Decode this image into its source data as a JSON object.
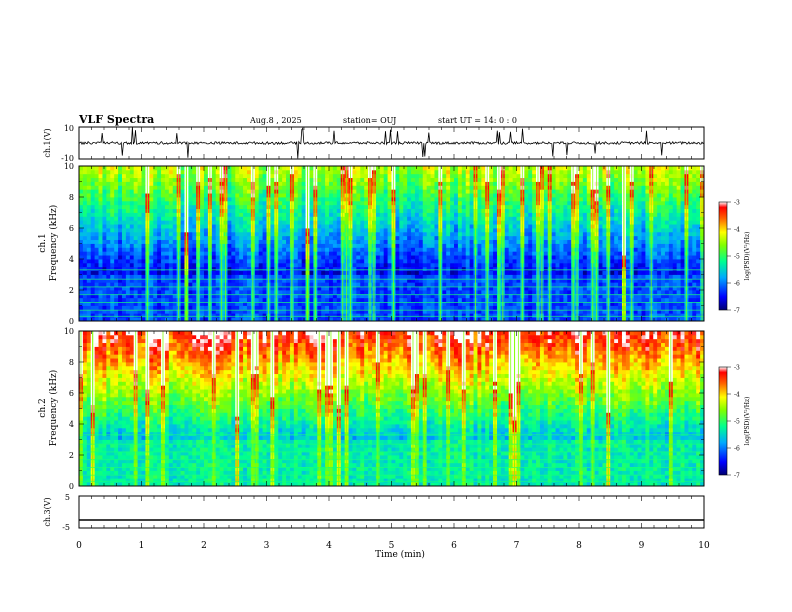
{
  "header": {
    "title": "VLF Spectra",
    "date": "Aug.8 , 2025",
    "station": "station= OUJ",
    "start": "start UT = 14: 0 : 0"
  },
  "chart_data": [
    {
      "type": "line",
      "panel": "ch1-waveform",
      "ylabel": "ch.1(V)",
      "ylim": [
        -10,
        10
      ],
      "yticks": [
        "10",
        "-10"
      ],
      "xlim": [
        0,
        10
      ],
      "description_values": {
        "baseline": 0,
        "max_spike": 10,
        "min_spike": -10
      }
    },
    {
      "type": "heatmap",
      "panel": "ch1-spectrogram",
      "ylabel": "ch.1\nFrequency (kHz)",
      "ylabel_line1": "ch.1",
      "ylabel_line2": "Frequency (kHz)",
      "ylim": [
        0,
        10
      ],
      "yticks": [
        "0",
        "2",
        "4",
        "6",
        "8",
        "10"
      ],
      "xlim": [
        0,
        10
      ],
      "colorbar": {
        "label": "log(PSD)(V²/Hz)",
        "min": -7,
        "max": -3,
        "ticks": [
          "-3",
          "-4",
          "-5",
          "-6",
          "-7"
        ]
      }
    },
    {
      "type": "heatmap",
      "panel": "ch2-spectrogram",
      "ylabel_line1": "ch.2",
      "ylabel_line2": "Frequency (kHz)",
      "ylim": [
        0,
        10
      ],
      "yticks": [
        "0",
        "2",
        "4",
        "6",
        "8",
        "10"
      ],
      "xlim": [
        0,
        10
      ],
      "colorbar": {
        "label": "log(PSD)(V²/Hz)",
        "min": -7,
        "max": -3,
        "ticks": [
          "-3",
          "-4",
          "-5",
          "-6",
          "-7"
        ]
      }
    },
    {
      "type": "line",
      "panel": "ch3-waveform",
      "ylabel": "ch.3(V)",
      "ylim": [
        -5,
        5
      ],
      "yticks": [
        "5",
        "-5"
      ],
      "baseline_value": -2.5,
      "xlim": [
        0,
        10
      ],
      "xlabel": "Time (min)",
      "xticks": [
        "0",
        "1",
        "2",
        "3",
        "4",
        "5",
        "6",
        "7",
        "8",
        "9",
        "10"
      ]
    }
  ],
  "colors": {
    "scale": [
      "#00006e",
      "#0000ff",
      "#00bfff",
      "#00ff80",
      "#ffff00",
      "#ff8000",
      "#ff0000",
      "#ffffff"
    ]
  }
}
